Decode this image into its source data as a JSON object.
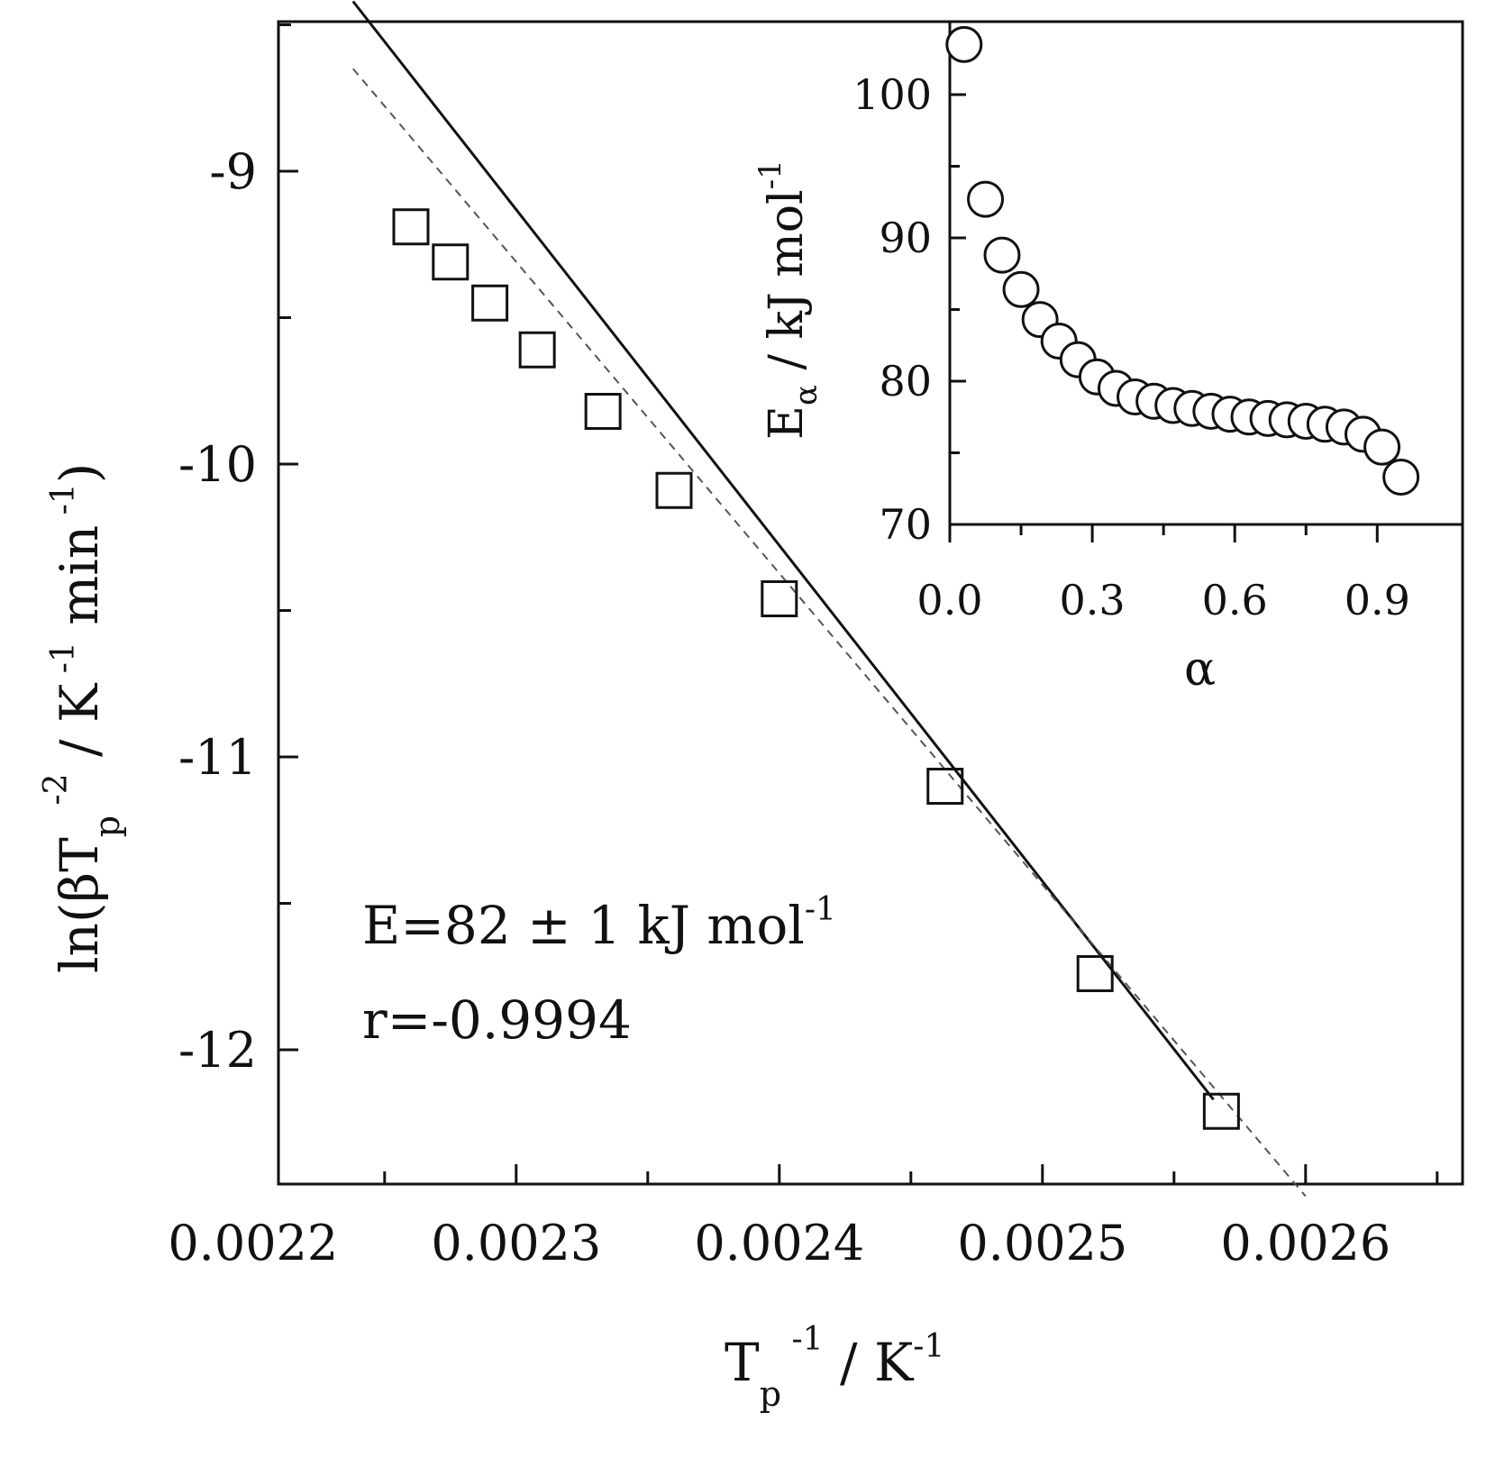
{
  "chart_data": [
    {
      "type": "scatter",
      "panel": "main",
      "xlabel": "T_p^-1 / K^-1",
      "ylabel": "ln(βT_p^-2 / K^-1 min^-1)",
      "xlim": [
        0.0022,
        0.00264
      ],
      "ylim": [
        -12.5,
        -8.5
      ],
      "xticks": [
        "0.0022",
        "0.0023",
        "0.0024",
        "0.0025",
        "0.0026"
      ],
      "yticks": [
        "-9",
        "-10",
        "-11",
        "-12"
      ],
      "grid": false,
      "series": [
        {
          "marker": "open-square",
          "x": [
            0.00226,
            0.002275,
            0.00229,
            0.002308,
            0.002333,
            0.00236,
            0.0024,
            0.002463,
            0.00252,
            0.002568
          ],
          "y": [
            -9.19,
            -9.31,
            -9.45,
            -9.61,
            -9.82,
            -10.09,
            -10.46,
            -11.1,
            -11.74,
            -12.21
          ]
        }
      ],
      "lines": [
        {
          "style": "solid",
          "x": [
            0.002238,
            0.002565
          ],
          "y": [
            -8.42,
            -12.17
          ]
        },
        {
          "style": "dashed",
          "x": [
            0.002238,
            0.0026
          ],
          "y": [
            -8.65,
            -12.5
          ]
        }
      ],
      "annotations": [
        {
          "label": "E=82 ± 1 kJ mol⁻¹"
        },
        {
          "label": "r=-0.9994"
        }
      ]
    },
    {
      "type": "scatter",
      "panel": "inset",
      "xlabel": "α",
      "ylabel": "E_α / kJ mol^-1",
      "xlim": [
        0.0,
        1.0
      ],
      "ylim": [
        70,
        105
      ],
      "xticks": [
        "0.0",
        "0.3",
        "0.6",
        "0.9"
      ],
      "yticks": [
        "70",
        "80",
        "90",
        "100"
      ],
      "grid": false,
      "series": [
        {
          "marker": "open-circle",
          "x": [
            0.03,
            0.075,
            0.11,
            0.15,
            0.19,
            0.23,
            0.27,
            0.31,
            0.35,
            0.39,
            0.43,
            0.47,
            0.51,
            0.55,
            0.59,
            0.63,
            0.67,
            0.71,
            0.75,
            0.79,
            0.83,
            0.87,
            0.91,
            0.95
          ],
          "y": [
            103.5,
            92.7,
            88.8,
            86.4,
            84.3,
            82.8,
            81.5,
            80.3,
            79.5,
            78.9,
            78.6,
            78.3,
            78.1,
            77.9,
            77.7,
            77.5,
            77.4,
            77.3,
            77.2,
            77.0,
            76.8,
            76.3,
            75.4,
            73.3
          ]
        }
      ]
    }
  ]
}
